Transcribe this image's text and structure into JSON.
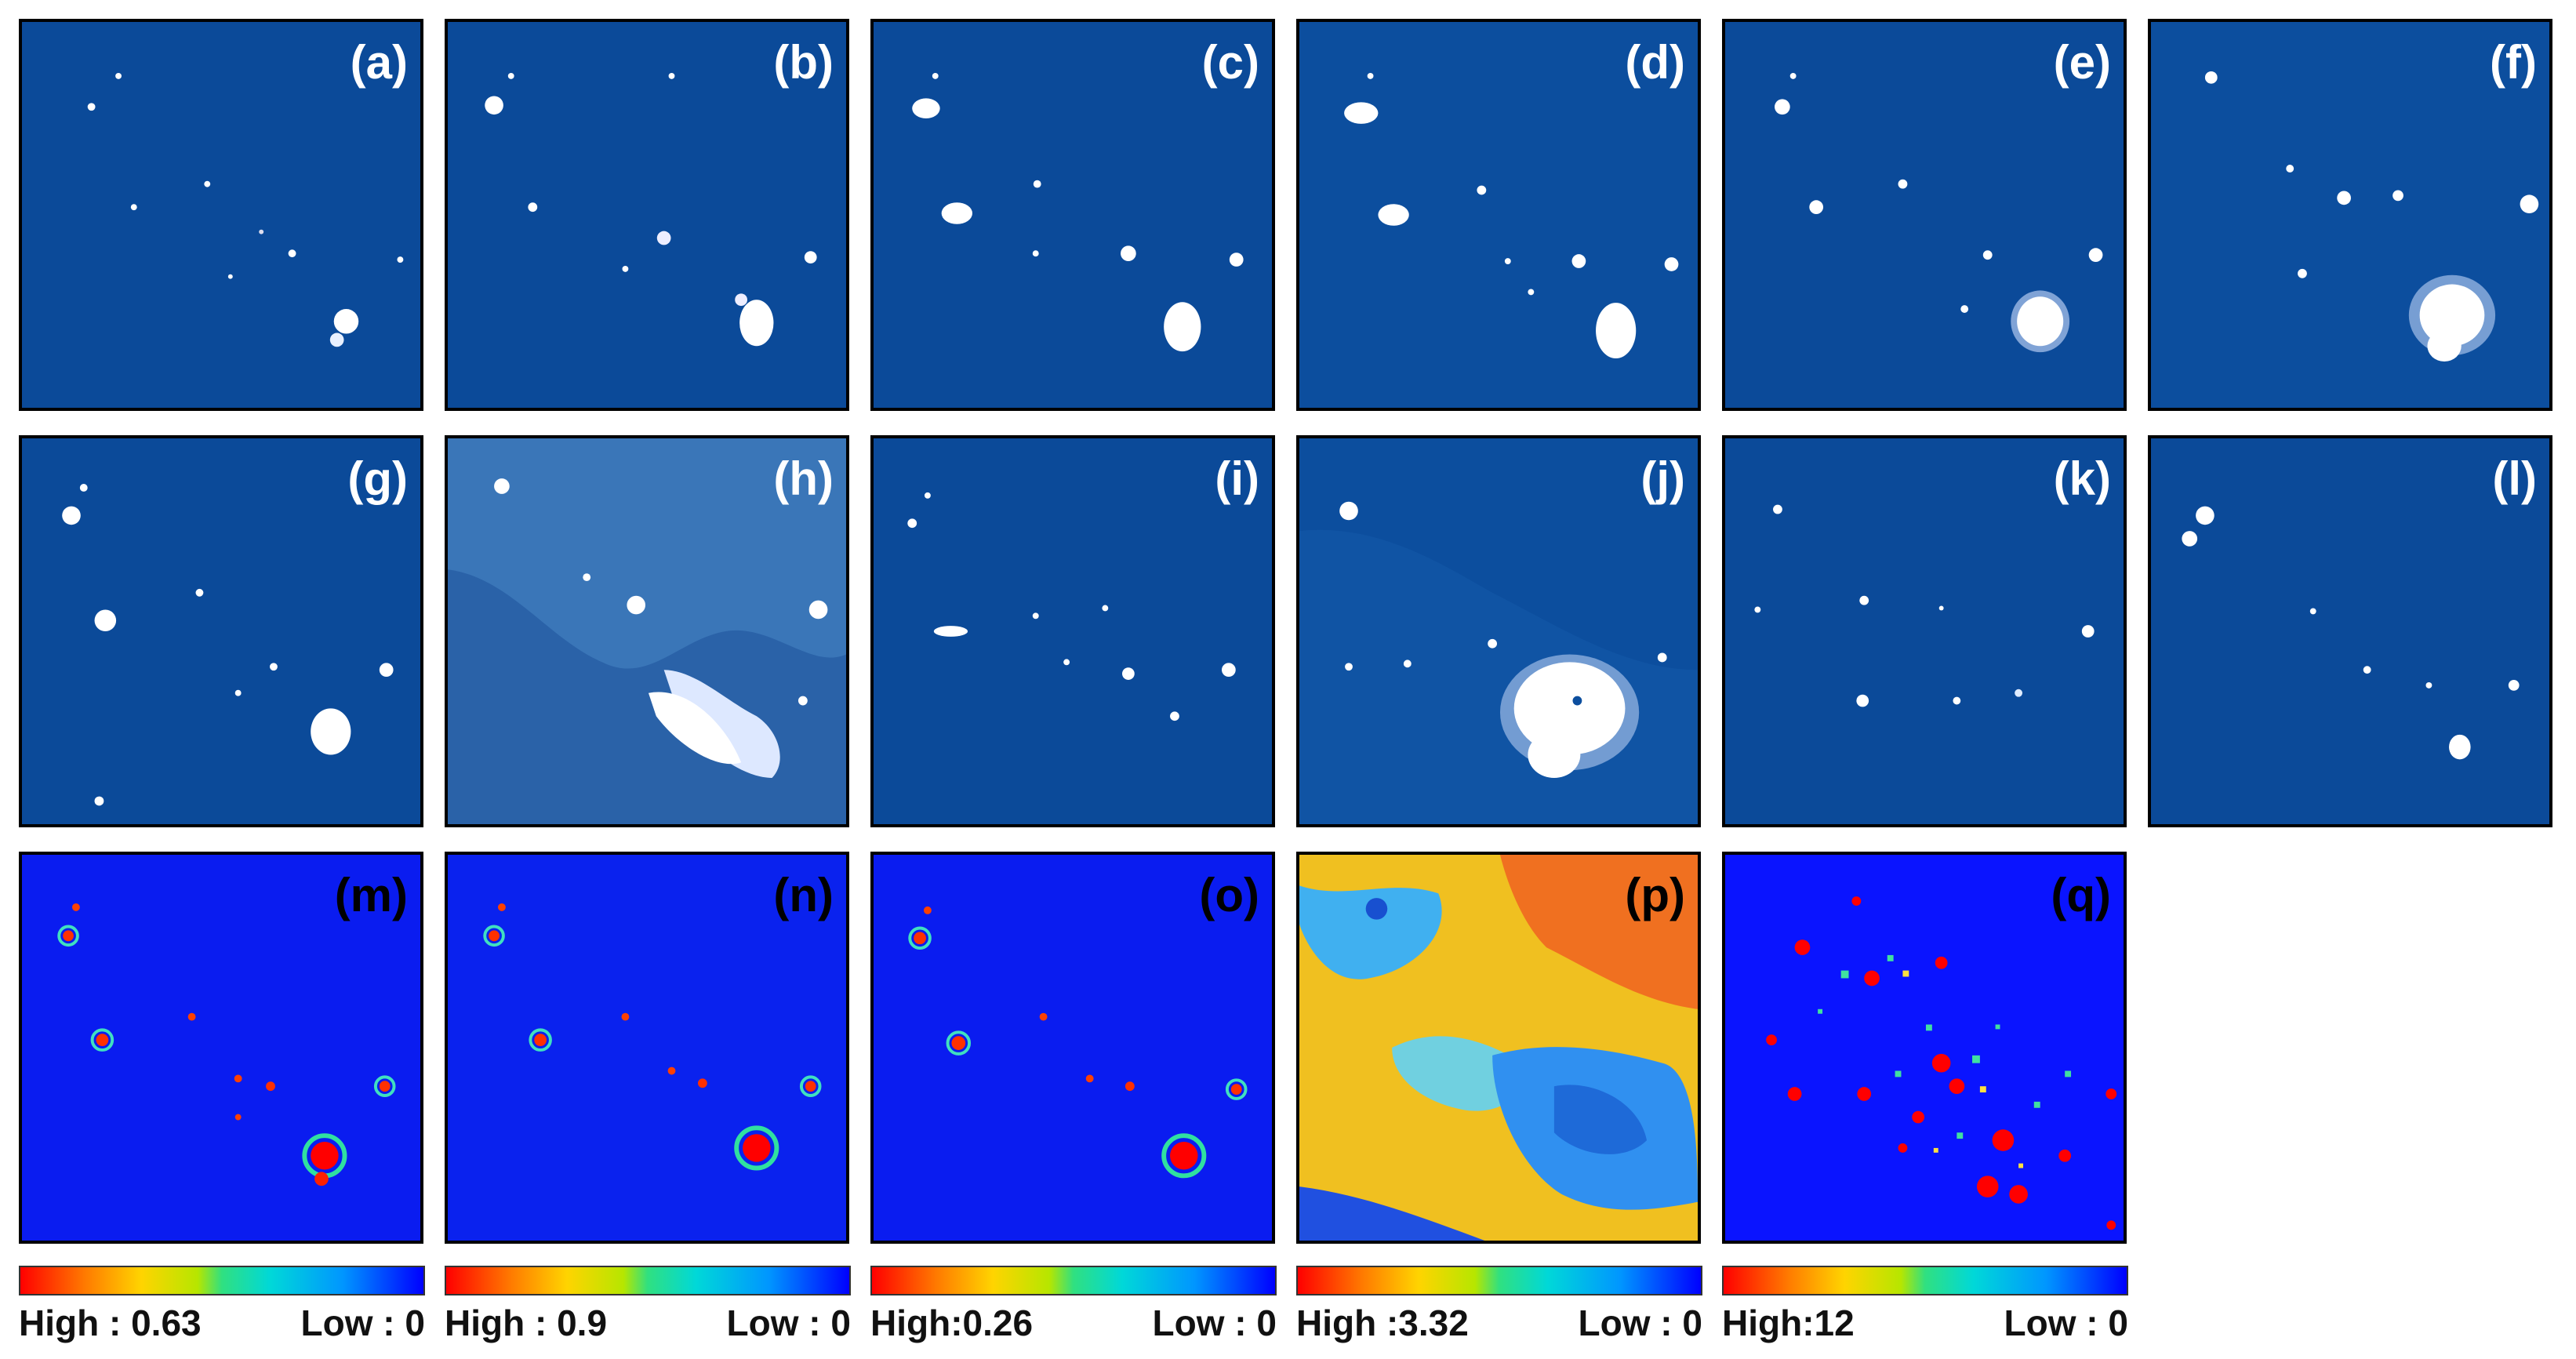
{
  "figure": {
    "background_colors": {
      "nightlight_panel": "#0b4a99",
      "heatmap_panel": "#0a1cf0",
      "uncertainty_panel": "#f0c020"
    },
    "rows": [
      {
        "panels": [
          {
            "label": "(a)"
          },
          {
            "label": "(b)"
          },
          {
            "label": "(c)"
          },
          {
            "label": "(d)"
          },
          {
            "label": "(e)"
          },
          {
            "label": "(f)"
          }
        ]
      },
      {
        "panels": [
          {
            "label": "(g)"
          },
          {
            "label": "(h)"
          },
          {
            "label": "(i)"
          },
          {
            "label": "(j)"
          },
          {
            "label": "(k)"
          },
          {
            "label": "(l)"
          }
        ]
      },
      {
        "panels": [
          {
            "label": "(m)"
          },
          {
            "label": "(n)"
          },
          {
            "label": "(o)"
          },
          {
            "label": "(p)"
          },
          {
            "label": "(q)"
          }
        ]
      }
    ],
    "colorbars": [
      {
        "high": "High : 0.63",
        "low": "Low : 0"
      },
      {
        "high": "High : 0.9",
        "low": "Low : 0"
      },
      {
        "high": "High:0.26",
        "low": "Low : 0"
      },
      {
        "high": "High :3.32",
        "low": "Low : 0"
      },
      {
        "high": "High:12",
        "low": "Low : 0"
      }
    ]
  }
}
